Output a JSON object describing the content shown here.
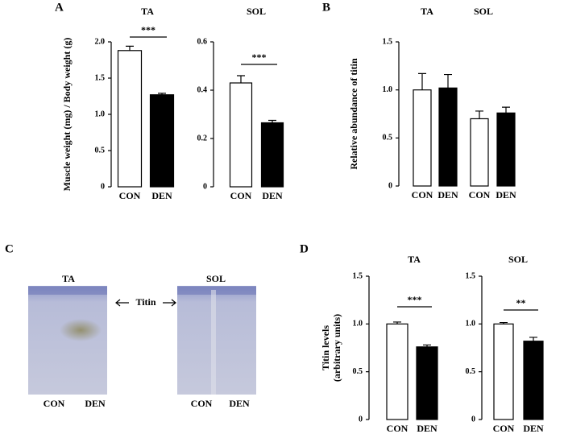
{
  "panels": [
    "A",
    "B",
    "C",
    "D"
  ],
  "gel": {
    "lanes": [
      {
        "title": "TA",
        "labels": [
          "CON",
          "DEN"
        ]
      },
      {
        "title": "SOL",
        "labels": [
          "CON",
          "DEN"
        ]
      }
    ],
    "band": "Titin"
  },
  "chart_data": [
    {
      "type": "bar",
      "title": "TA",
      "ylabel": "Muscle weight (mg) / Body weight (g)",
      "categories": [
        "CON",
        "DEN"
      ],
      "values": [
        1.88,
        1.27
      ],
      "errors": [
        0.06,
        0.02
      ],
      "colors": [
        "#ffffff",
        "#000000"
      ],
      "ylim": [
        0,
        2
      ],
      "yticks": [
        0,
        0.5,
        {
          "value": 1,
          "label": "1.0"
        },
        1.5,
        {
          "value": 2,
          "label": "2.0"
        }
      ],
      "significance": "***"
    },
    {
      "type": "bar",
      "title": "SOL",
      "categories": [
        "CON",
        "DEN"
      ],
      "values": [
        0.43,
        0.265
      ],
      "errors": [
        0.03,
        0.01
      ],
      "colors": [
        "#ffffff",
        "#000000"
      ],
      "ylim": [
        0,
        0.6
      ],
      "yticks": [
        0,
        0.2,
        0.4,
        0.6
      ],
      "significance": "***"
    },
    {
      "type": "grouped_bar",
      "ylabel": "Relative abundance  of titin",
      "categories": [
        "TA",
        "SOL"
      ],
      "series": [
        {
          "name": "CON",
          "color": "#ffffff",
          "values": [
            1.0,
            0.7
          ],
          "errors": [
            0.17,
            0.08
          ]
        },
        {
          "name": "DEN",
          "color": "#000000",
          "values": [
            1.02,
            0.76
          ],
          "errors": [
            0.14,
            0.06
          ]
        }
      ],
      "ylim": [
        0,
        1.5
      ],
      "yticks": [
        0,
        0.5,
        {
          "value": 1,
          "label": "1.0"
        },
        1.5
      ]
    },
    {
      "type": "bar",
      "title": "TA",
      "ylabel": [
        "Titin levels",
        "(arbitrary  units)"
      ],
      "categories": [
        "CON",
        "DEN"
      ],
      "values": [
        1.0,
        0.76
      ],
      "errors": [
        0.02,
        0.02
      ],
      "colors": [
        "#ffffff",
        "#000000"
      ],
      "ylim": [
        0,
        1.5
      ],
      "yticks": [
        0,
        0.5,
        {
          "value": 1,
          "label": "1.0"
        },
        1.5
      ],
      "significance": "***"
    },
    {
      "type": "bar",
      "title": "SOL",
      "categories": [
        "CON",
        "DEN"
      ],
      "values": [
        1.0,
        0.82
      ],
      "errors": [
        0.015,
        0.04
      ],
      "colors": [
        "#ffffff",
        "#000000"
      ],
      "ylim": [
        0,
        1.5
      ],
      "yticks": [
        0,
        0.5,
        {
          "value": 1,
          "label": "1.0"
        },
        1.5
      ],
      "significance": "**"
    }
  ]
}
